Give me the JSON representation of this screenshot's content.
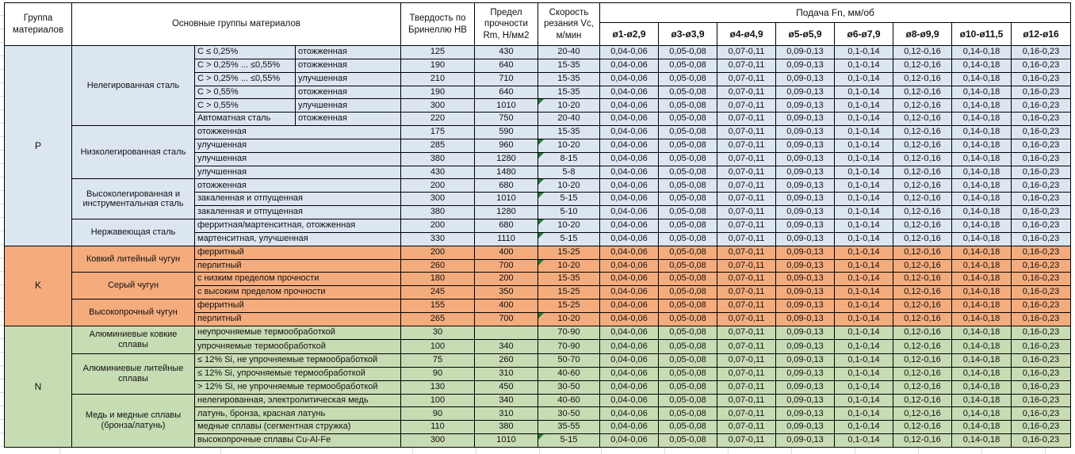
{
  "header": {
    "col_group": "Группа материалов",
    "col_main_groups": "Основные группы материалов",
    "col_hardness": "Твердость по Бринеллю HB",
    "col_strength": "Предел прочности Rm, Н/мм2",
    "col_speed": "Скорость резания Vc, м/мин",
    "feed_title": "Подача Fn, мм/об",
    "feed_cols": [
      "ø1-ø2,9",
      "ø3-ø3,9",
      "ø4-ø4,9",
      "ø5-ø5,9",
      "ø6-ø7,9",
      "ø8-ø9,9",
      "ø10-ø11,5",
      "ø12-ø16"
    ]
  },
  "colors": {
    "P": "#dce6f1",
    "K": "#f5ac7d",
    "N": "#c8dcb4",
    "flag_triangle": "#1e7e34",
    "border": "#000000"
  },
  "feed_values": [
    "0,04-0,06",
    "0,05-0,08",
    "0,07-0,11",
    "0,09-0,13",
    "0,1-0,14",
    "0,12-0,16",
    "0,14-0,18",
    "0,16-0,23"
  ],
  "rows": [
    {
      "group": "P",
      "subgroup": "Нелегированная сталь",
      "type": "C ≤ 0,25%",
      "treatment": "отожженная",
      "hb": "125",
      "rm": "430",
      "vc": "20-40",
      "flag": false
    },
    {
      "group": "P",
      "subgroup": "Нелегированная сталь",
      "type": "C > 0,25% ... ≤0,55%",
      "treatment": "отожженная",
      "hb": "190",
      "rm": "640",
      "vc": "15-35",
      "flag": false
    },
    {
      "group": "P",
      "subgroup": "Нелегированная сталь",
      "type": "C > 0,25% ... ≤0,55%",
      "treatment": "улучшенная",
      "hb": "210",
      "rm": "710",
      "vc": "15-35",
      "flag": false
    },
    {
      "group": "P",
      "subgroup": "Нелегированная сталь",
      "type": "C > 0,55%",
      "treatment": "отожженная",
      "hb": "190",
      "rm": "640",
      "vc": "15-35",
      "flag": false
    },
    {
      "group": "P",
      "subgroup": "Нелегированная сталь",
      "type": "C > 0,55%",
      "treatment": "улучшенная",
      "hb": "300",
      "rm": "1010",
      "vc": "10-20",
      "flag": true
    },
    {
      "group": "P",
      "subgroup": "Нелегированная сталь",
      "type": "Автоматная сталь",
      "treatment": "отожженная",
      "hb": "220",
      "rm": "750",
      "vc": "20-40",
      "flag": false
    },
    {
      "group": "P",
      "subgroup": "Низколегированная сталь",
      "type": "отожженная",
      "treatment": null,
      "hb": "175",
      "rm": "590",
      "vc": "15-35",
      "flag": false
    },
    {
      "group": "P",
      "subgroup": "Низколегированная сталь",
      "type": "улучшенная",
      "treatment": null,
      "hb": "285",
      "rm": "960",
      "vc": "10-20",
      "flag": true
    },
    {
      "group": "P",
      "subgroup": "Низколегированная сталь",
      "type": "улучшенная",
      "treatment": null,
      "hb": "380",
      "rm": "1280",
      "vc": "8-15",
      "flag": true
    },
    {
      "group": "P",
      "subgroup": "Низколегированная сталь",
      "type": "улучшенная",
      "treatment": null,
      "hb": "430",
      "rm": "1480",
      "vc": "5-8",
      "flag": false
    },
    {
      "group": "P",
      "subgroup": "Высоколегированная и инструментальная сталь",
      "type": "отожженная",
      "treatment": null,
      "hb": "200",
      "rm": "680",
      "vc": "10-20",
      "flag": true
    },
    {
      "group": "P",
      "subgroup": "Высоколегированная и инструментальная сталь",
      "type": "закаленная и отпущенная",
      "treatment": null,
      "hb": "300",
      "rm": "1010",
      "vc": "5-15",
      "flag": true
    },
    {
      "group": "P",
      "subgroup": "Высоколегированная и инструментальная сталь",
      "type": "закаленная и отпущенная",
      "treatment": null,
      "hb": "380",
      "rm": "1280",
      "vc": "5-10",
      "flag": false
    },
    {
      "group": "P",
      "subgroup": "Нержавеющая сталь",
      "type": "ферритная/мартенситная, отожженная",
      "treatment": null,
      "hb": "200",
      "rm": "680",
      "vc": "10-20",
      "flag": true
    },
    {
      "group": "P",
      "subgroup": "Нержавеющая сталь",
      "type": "мартенситная, улучшенная",
      "treatment": null,
      "hb": "330",
      "rm": "1110",
      "vc": "5-15",
      "flag": true
    },
    {
      "group": "K",
      "subgroup": "Ковкий литейный чугун",
      "type": "ферритный",
      "treatment": null,
      "hb": "200",
      "rm": "400",
      "vc": "15-25",
      "flag": false
    },
    {
      "group": "K",
      "subgroup": "Ковкий литейный чугун",
      "type": "перлитный",
      "treatment": null,
      "hb": "260",
      "rm": "700",
      "vc": "10-20",
      "flag": true
    },
    {
      "group": "K",
      "subgroup": "Серый чугун",
      "type": "с низким пределом прочности",
      "treatment": null,
      "hb": "180",
      "rm": "200",
      "vc": "15-35",
      "flag": false
    },
    {
      "group": "K",
      "subgroup": "Серый чугун",
      "type": "с высоким пределом прочности",
      "treatment": null,
      "hb": "245",
      "rm": "350",
      "vc": "15-25",
      "flag": false
    },
    {
      "group": "K",
      "subgroup": "Высокопрочный чугун",
      "type": "ферритный",
      "treatment": null,
      "hb": "155",
      "rm": "400",
      "vc": "15-25",
      "flag": false
    },
    {
      "group": "K",
      "subgroup": "Высокопрочный чугун",
      "type": "перлитный",
      "treatment": null,
      "hb": "265",
      "rm": "700",
      "vc": "10-20",
      "flag": true
    },
    {
      "group": "N",
      "subgroup": "Алюминиевые ковкие сплавы",
      "type": "неупрочняемые термообработкой",
      "treatment": null,
      "hb": "30",
      "rm": "",
      "vc": "70-90",
      "flag": false
    },
    {
      "group": "N",
      "subgroup": "Алюминиевые ковкие сплавы",
      "type": "упрочняемые термообработкой",
      "treatment": null,
      "hb": "100",
      "rm": "340",
      "vc": "70-90",
      "flag": false
    },
    {
      "group": "N",
      "subgroup": "Алюминиевые литейные сплавы",
      "type": "≤ 12% Si, не упрочняемые термообработкой",
      "treatment": null,
      "hb": "75",
      "rm": "260",
      "vc": "50-70",
      "flag": false
    },
    {
      "group": "N",
      "subgroup": "Алюминиевые литейные сплавы",
      "type": "≤ 12% Si, упрочняемые термообработкой",
      "treatment": null,
      "hb": "90",
      "rm": "310",
      "vc": "40-60",
      "flag": false
    },
    {
      "group": "N",
      "subgroup": "Алюминиевые литейные сплавы",
      "type": "> 12% Si, не упрочняемые термообработкой",
      "treatment": null,
      "hb": "130",
      "rm": "450",
      "vc": "30-50",
      "flag": false
    },
    {
      "group": "N",
      "subgroup": "Медь и медные сплавы (бронза/латунь)",
      "type": "нелегированная, электролитическая медь",
      "treatment": null,
      "hb": "100",
      "rm": "340",
      "vc": "40-60",
      "flag": false
    },
    {
      "group": "N",
      "subgroup": "Медь и медные сплавы (бронза/латунь)",
      "type": "латунь, бронза, красная латунь",
      "treatment": null,
      "hb": "90",
      "rm": "310",
      "vc": "30-50",
      "flag": false
    },
    {
      "group": "N",
      "subgroup": "Медь и медные сплавы (бронза/латунь)",
      "type": "медные сплавы (сегментная стружка)",
      "treatment": null,
      "hb": "110",
      "rm": "380",
      "vc": "35-55",
      "flag": false
    },
    {
      "group": "N",
      "subgroup": "Медь и медные сплавы (бронза/латунь)",
      "type": "высокопрочные сплавы Cu-Al-Fe",
      "treatment": null,
      "hb": "300",
      "rm": "1010",
      "vc": "5-15",
      "flag": true
    }
  ]
}
